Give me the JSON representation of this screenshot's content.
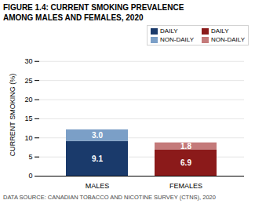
{
  "chart_data": {
    "type": "bar",
    "stacked": true,
    "title": "FIGURE 1.4: CURRENT SMOKING PREVALENCE\nAMONG MALES AND FEMALES, 2020",
    "categories": [
      "MALES",
      "FEMALES"
    ],
    "series": [
      {
        "name": "DAILY",
        "colors": [
          "#1a3a6b",
          "#8b1a1a"
        ],
        "values": [
          9.1,
          6.9
        ],
        "value_labels": [
          "9.1",
          "6.9"
        ]
      },
      {
        "name": "NON-DAILY",
        "colors": [
          "#7b9fc7",
          "#c47a7a"
        ],
        "values": [
          3.0,
          1.8
        ],
        "value_labels": [
          "3.0",
          "1.8"
        ]
      }
    ],
    "ylabel": "CURRENT SMOKING (%)",
    "ylim": [
      0,
      32
    ],
    "yticks": [
      0,
      5,
      10,
      15,
      20,
      25,
      30
    ],
    "grid": true,
    "legend": "top-right",
    "data_labels": true,
    "caption": "DATA SOURCE: CANADIAN TOBACCO AND NICOTINE SURVEY (CTNS), 2020"
  }
}
